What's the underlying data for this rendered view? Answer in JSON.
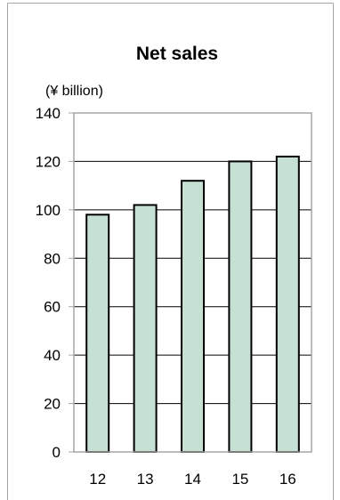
{
  "chart_data": {
    "type": "bar",
    "title": "Net sales",
    "unit_label": "(¥ billion)",
    "categories": [
      "12",
      "13",
      "14",
      "15",
      "16"
    ],
    "values": [
      98,
      102,
      112,
      120,
      122
    ],
    "ylim": [
      0,
      140
    ],
    "yticks": [
      0,
      20,
      40,
      60,
      80,
      100,
      120,
      140
    ],
    "ytick_labels": [
      "0",
      "20",
      "40",
      "60",
      "80",
      "100",
      "120",
      "140"
    ],
    "grid": true,
    "legend": "none",
    "bar_fill": "#c6e0d3",
    "bar_stroke": "#000000",
    "plot_border": "#a6a6a6"
  }
}
